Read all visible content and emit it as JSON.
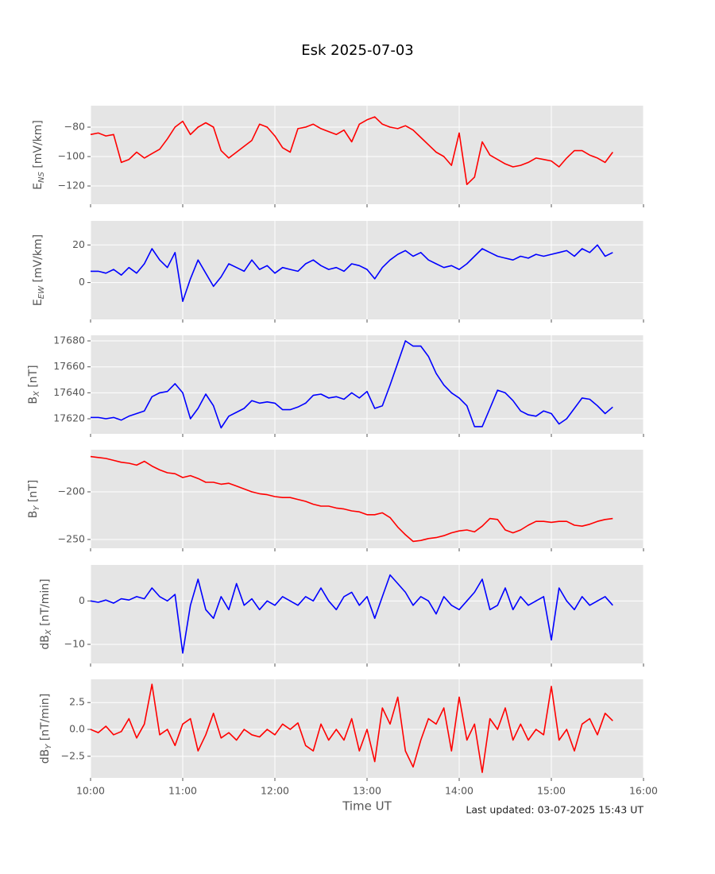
{
  "title": "Esk 2025-07-03",
  "footer": "Last updated: 03-07-2025 15:43 UT",
  "chart_data": [
    {
      "type": "line",
      "ylabel": {
        "base": "E",
        "sub": "NS",
        "rest": " [mV/km]"
      },
      "color": "#ff0000",
      "x": [
        "10:00",
        "10:05",
        "10:10",
        "10:15",
        "10:20",
        "10:25",
        "10:30",
        "10:35",
        "10:40",
        "10:45",
        "10:50",
        "10:55",
        "11:00",
        "11:05",
        "11:10",
        "11:15",
        "11:20",
        "11:25",
        "11:30",
        "11:35",
        "11:40",
        "11:45",
        "11:50",
        "11:55",
        "12:00",
        "12:05",
        "12:10",
        "12:15",
        "12:20",
        "12:25",
        "12:30",
        "12:35",
        "12:40",
        "12:45",
        "12:50",
        "12:55",
        "13:00",
        "13:05",
        "13:10",
        "13:15",
        "13:20",
        "13:25",
        "13:30",
        "13:35",
        "13:40",
        "13:45",
        "13:50",
        "13:55",
        "14:00",
        "14:05",
        "14:10",
        "14:15",
        "14:20",
        "14:25",
        "14:30",
        "14:35",
        "14:40",
        "14:45",
        "14:50",
        "14:55",
        "15:00",
        "15:05",
        "15:10",
        "15:15",
        "15:20",
        "15:25",
        "15:30",
        "15:35",
        "15:40"
      ],
      "values": [
        -85,
        -84,
        -86,
        -85,
        -104,
        -102,
        -97,
        -101,
        -98,
        -95,
        -88,
        -80,
        -76,
        -85,
        -80,
        -77,
        -80,
        -96,
        -101,
        -97,
        -93,
        -89,
        -78,
        -80,
        -86,
        -94,
        -97,
        -81,
        -80,
        -78,
        -81,
        -83,
        -85,
        -82,
        -90,
        -78,
        -75,
        -73,
        -78,
        -80,
        -81,
        -79,
        -82,
        -87,
        -92,
        -97,
        -100,
        -106,
        -84,
        -119,
        -114,
        -90,
        -99,
        -102,
        -105,
        -107,
        -106,
        -104,
        -101,
        -102,
        -103,
        -107,
        -101,
        -96,
        -96,
        -99,
        -101,
        -104,
        -97
      ],
      "xlim": [
        "10:00",
        "16:00"
      ],
      "xticks": [
        "10:00",
        "11:00",
        "12:00",
        "13:00",
        "14:00",
        "15:00",
        "16:00"
      ],
      "ylim": [
        -132.4,
        -65.4
      ],
      "yticks": [
        {
          "value": -120,
          "label": "−120"
        },
        {
          "value": -100,
          "label": "−100"
        },
        {
          "value": -80,
          "label": "−80"
        }
      ],
      "grid": true
    },
    {
      "type": "line",
      "ylabel": {
        "base": "E",
        "sub": "EW",
        "rest": " [mV/km]"
      },
      "color": "#0000ff",
      "x": [
        "10:00",
        "10:05",
        "10:10",
        "10:15",
        "10:20",
        "10:25",
        "10:30",
        "10:35",
        "10:40",
        "10:45",
        "10:50",
        "10:55",
        "11:00",
        "11:05",
        "11:10",
        "11:15",
        "11:20",
        "11:25",
        "11:30",
        "11:35",
        "11:40",
        "11:45",
        "11:50",
        "11:55",
        "12:00",
        "12:05",
        "12:10",
        "12:15",
        "12:20",
        "12:25",
        "12:30",
        "12:35",
        "12:40",
        "12:45",
        "12:50",
        "12:55",
        "13:00",
        "13:05",
        "13:10",
        "13:15",
        "13:20",
        "13:25",
        "13:30",
        "13:35",
        "13:40",
        "13:45",
        "13:50",
        "13:55",
        "14:00",
        "14:05",
        "14:10",
        "14:15",
        "14:20",
        "14:25",
        "14:30",
        "14:35",
        "14:40",
        "14:45",
        "14:50",
        "14:55",
        "15:00",
        "15:05",
        "15:10",
        "15:15",
        "15:20",
        "15:25",
        "15:30",
        "15:35",
        "15:40"
      ],
      "values": [
        6,
        6,
        5,
        7,
        4,
        8,
        5,
        10,
        18,
        12,
        8,
        16,
        -10,
        2,
        12,
        5,
        -2,
        3,
        10,
        8,
        6,
        12,
        7,
        9,
        5,
        8,
        7,
        6,
        10,
        12,
        9,
        7,
        8,
        6,
        10,
        9,
        7,
        2,
        8,
        12,
        15,
        17,
        14,
        16,
        12,
        10,
        8,
        9,
        7,
        10,
        14,
        18,
        16,
        14,
        13,
        12,
        14,
        13,
        15,
        14,
        15,
        16,
        17,
        14,
        18,
        16,
        20,
        14,
        16
      ],
      "xlim": [
        "10:00",
        "16:00"
      ],
      "xticks": [
        "10:00",
        "11:00",
        "12:00",
        "13:00",
        "14:00",
        "15:00",
        "16:00"
      ],
      "ylim": [
        -19.6,
        32.8
      ],
      "yticks": [
        0,
        20
      ],
      "grid": true
    },
    {
      "type": "line",
      "ylabel": {
        "base": "B",
        "sub": "X",
        "rest": " [nT]"
      },
      "color": "#0000ff",
      "x": [
        "10:00",
        "10:05",
        "10:10",
        "10:15",
        "10:20",
        "10:25",
        "10:30",
        "10:35",
        "10:40",
        "10:45",
        "10:50",
        "10:55",
        "11:00",
        "11:05",
        "11:10",
        "11:15",
        "11:20",
        "11:25",
        "11:30",
        "11:35",
        "11:40",
        "11:45",
        "11:50",
        "11:55",
        "12:00",
        "12:05",
        "12:10",
        "12:15",
        "12:20",
        "12:25",
        "12:30",
        "12:35",
        "12:40",
        "12:45",
        "12:50",
        "12:55",
        "13:00",
        "13:05",
        "13:10",
        "13:15",
        "13:20",
        "13:25",
        "13:30",
        "13:35",
        "13:40",
        "13:45",
        "13:50",
        "13:55",
        "14:00",
        "14:05",
        "14:10",
        "14:15",
        "14:20",
        "14:25",
        "14:30",
        "14:35",
        "14:40",
        "14:45",
        "14:50",
        "14:55",
        "15:00",
        "15:05",
        "15:10",
        "15:15",
        "15:20",
        "15:25",
        "15:30",
        "15:35",
        "15:40"
      ],
      "values": [
        17621,
        17621,
        17620,
        17621,
        17619,
        17622,
        17624,
        17626,
        17637,
        17640,
        17641,
        17647,
        17640,
        17620,
        17628,
        17639,
        17630,
        17613,
        17622,
        17625,
        17628,
        17634,
        17632,
        17633,
        17632,
        17627,
        17627,
        17629,
        17632,
        17638,
        17639,
        17636,
        17637,
        17635,
        17640,
        17636,
        17641,
        17628,
        17630,
        17646,
        17663,
        17680,
        17676,
        17676,
        17668,
        17655,
        17646,
        17640,
        17636,
        17630,
        17614,
        17614,
        17628,
        17642,
        17640,
        17634,
        17626,
        17623,
        17622,
        17626,
        17624,
        17616,
        17620,
        17628,
        17636,
        17635,
        17630,
        17624,
        17629
      ],
      "xlim": [
        "10:00",
        "16:00"
      ],
      "xticks": [
        "10:00",
        "11:00",
        "12:00",
        "13:00",
        "14:00",
        "15:00",
        "16:00"
      ],
      "ylim": [
        17608.4,
        17684.3
      ],
      "yticks": [
        17620,
        17640,
        17660,
        17680
      ],
      "grid": true
    },
    {
      "type": "line",
      "ylabel": {
        "base": "B",
        "sub": "Y",
        "rest": " [nT]"
      },
      "color": "#ff0000",
      "x": [
        "10:00",
        "10:05",
        "10:10",
        "10:15",
        "10:20",
        "10:25",
        "10:30",
        "10:35",
        "10:40",
        "10:45",
        "10:50",
        "10:55",
        "11:00",
        "11:05",
        "11:10",
        "11:15",
        "11:20",
        "11:25",
        "11:30",
        "11:35",
        "11:40",
        "11:45",
        "11:50",
        "11:55",
        "12:00",
        "12:05",
        "12:10",
        "12:15",
        "12:20",
        "12:25",
        "12:30",
        "12:35",
        "12:40",
        "12:45",
        "12:50",
        "12:55",
        "13:00",
        "13:05",
        "13:10",
        "13:15",
        "13:20",
        "13:25",
        "13:30",
        "13:35",
        "13:40",
        "13:45",
        "13:50",
        "13:55",
        "14:00",
        "14:05",
        "14:10",
        "14:15",
        "14:20",
        "14:25",
        "14:30",
        "14:35",
        "14:40",
        "14:45",
        "14:50",
        "14:55",
        "15:00",
        "15:05",
        "15:10",
        "15:15",
        "15:20",
        "15:25",
        "15:30",
        "15:35",
        "15:40"
      ],
      "values": [
        -163,
        -164,
        -165,
        -167,
        -169,
        -170,
        -172,
        -168,
        -173,
        -177,
        -180,
        -181,
        -185,
        -183,
        -186,
        -190,
        -190,
        -192,
        -191,
        -194,
        -197,
        -200,
        -202,
        -203,
        -205,
        -206,
        -206,
        -208,
        -210,
        -213,
        -215,
        -215,
        -217,
        -218,
        -220,
        -221,
        -224,
        -224,
        -222,
        -227,
        -237,
        -245,
        -252,
        -251,
        -249,
        -248,
        -246,
        -243,
        -241,
        -240,
        -242,
        -236,
        -228,
        -229,
        -240,
        -243,
        -240,
        -235,
        -231,
        -231,
        -232,
        -231,
        -231,
        -235,
        -236,
        -234,
        -231,
        -229,
        -228
      ],
      "xlim": [
        "10:00",
        "16:00"
      ],
      "xticks": [
        "10:00",
        "11:00",
        "12:00",
        "13:00",
        "14:00",
        "15:00",
        "16:00"
      ],
      "ylim": [
        -259.2,
        -155.8
      ],
      "yticks": [
        {
          "value": -250,
          "label": "−250"
        },
        {
          "value": -200,
          "label": "−200"
        }
      ],
      "grid": true
    },
    {
      "type": "line",
      "ylabel": {
        "base": "dB",
        "sub": "X",
        "rest": " [nT/min]"
      },
      "color": "#0000ff",
      "x": [
        "10:00",
        "10:05",
        "10:10",
        "10:15",
        "10:20",
        "10:25",
        "10:30",
        "10:35",
        "10:40",
        "10:45",
        "10:50",
        "10:55",
        "11:00",
        "11:05",
        "11:10",
        "11:15",
        "11:20",
        "11:25",
        "11:30",
        "11:35",
        "11:40",
        "11:45",
        "11:50",
        "11:55",
        "12:00",
        "12:05",
        "12:10",
        "12:15",
        "12:20",
        "12:25",
        "12:30",
        "12:35",
        "12:40",
        "12:45",
        "12:50",
        "12:55",
        "13:00",
        "13:05",
        "13:10",
        "13:15",
        "13:20",
        "13:25",
        "13:30",
        "13:35",
        "13:40",
        "13:45",
        "13:50",
        "13:55",
        "14:00",
        "14:05",
        "14:10",
        "14:15",
        "14:20",
        "14:25",
        "14:30",
        "14:35",
        "14:40",
        "14:45",
        "14:50",
        "14:55",
        "15:00",
        "15:05",
        "15:10",
        "15:15",
        "15:20",
        "15:25",
        "15:30",
        "15:35",
        "15:40"
      ],
      "values": [
        0,
        -0.3,
        0.2,
        -0.5,
        0.5,
        0.2,
        1,
        0.5,
        3,
        1,
        0,
        1.5,
        -12,
        -1,
        5,
        -2,
        -4,
        1,
        -2,
        4,
        -1,
        0.5,
        -2,
        0,
        -1,
        1,
        0,
        -1,
        1,
        0,
        3,
        0,
        -2,
        1,
        2,
        -1,
        1,
        -4,
        1,
        6,
        4,
        2,
        -1,
        1,
        0,
        -3,
        1,
        -1,
        -2,
        0,
        2,
        5,
        -2,
        -1,
        3,
        -2,
        1,
        -1,
        0,
        1,
        -9,
        3,
        0,
        -2,
        1,
        -1,
        0,
        1,
        -1
      ],
      "xlim": [
        "10:00",
        "16:00"
      ],
      "xticks": [
        "10:00",
        "11:00",
        "12:00",
        "13:00",
        "14:00",
        "15:00",
        "16:00"
      ],
      "ylim": [
        -14.4,
        8.3
      ],
      "yticks": [
        {
          "value": -10,
          "label": "−10"
        },
        0
      ],
      "grid": true
    },
    {
      "type": "line",
      "ylabel": {
        "base": "dB",
        "sub": "Y",
        "rest": " [nT/min]"
      },
      "color": "#ff0000",
      "x": [
        "10:00",
        "10:05",
        "10:10",
        "10:15",
        "10:20",
        "10:25",
        "10:30",
        "10:35",
        "10:40",
        "10:45",
        "10:50",
        "10:55",
        "11:00",
        "11:05",
        "11:10",
        "11:15",
        "11:20",
        "11:25",
        "11:30",
        "11:35",
        "11:40",
        "11:45",
        "11:50",
        "11:55",
        "12:00",
        "12:05",
        "12:10",
        "12:15",
        "12:20",
        "12:25",
        "12:30",
        "12:35",
        "12:40",
        "12:45",
        "12:50",
        "12:55",
        "13:00",
        "13:05",
        "13:10",
        "13:15",
        "13:20",
        "13:25",
        "13:30",
        "13:35",
        "13:40",
        "13:45",
        "13:50",
        "13:55",
        "14:00",
        "14:05",
        "14:10",
        "14:15",
        "14:20",
        "14:25",
        "14:30",
        "14:35",
        "14:40",
        "14:45",
        "14:50",
        "14:55",
        "15:00",
        "15:05",
        "15:10",
        "15:15",
        "15:20",
        "15:25",
        "15:30",
        "15:35",
        "15:40"
      ],
      "values": [
        0,
        -0.3,
        0.3,
        -0.5,
        -0.2,
        1,
        -0.8,
        0.5,
        4.2,
        -0.5,
        0,
        -1.5,
        0.5,
        1,
        -2,
        -0.5,
        1.5,
        -0.8,
        -0.3,
        -1,
        0,
        -0.5,
        -0.7,
        0,
        -0.5,
        0.5,
        0,
        0.6,
        -1.5,
        -2,
        0.5,
        -1,
        0,
        -1,
        1,
        -2,
        0,
        -3,
        2,
        0.5,
        3,
        -2,
        -3.5,
        -1,
        1,
        0.5,
        2,
        -2,
        3,
        -1,
        0.5,
        -4,
        1,
        0,
        2,
        -1,
        0.5,
        -1,
        0,
        -0.5,
        4,
        -1,
        0,
        -2,
        0.5,
        1,
        -0.5,
        1.5,
        0.8
      ],
      "xlim": [
        "10:00",
        "16:00"
      ],
      "xticks": [
        "10:00",
        "11:00",
        "12:00",
        "13:00",
        "14:00",
        "15:00",
        "16:00"
      ],
      "xlabel": "Time UT",
      "ylim": [
        -4.51,
        4.66
      ],
      "yticks": [
        {
          "value": -2.5,
          "label": "−2.5"
        },
        {
          "value": 0,
          "label": "0.0"
        },
        2.5
      ],
      "grid": true
    }
  ]
}
